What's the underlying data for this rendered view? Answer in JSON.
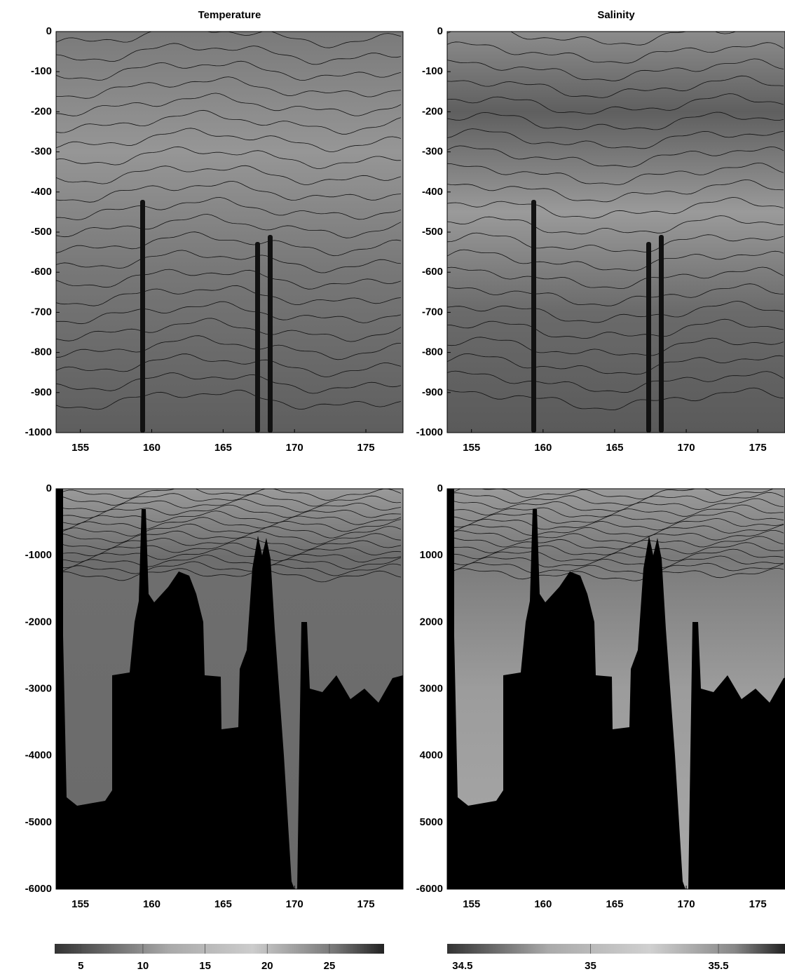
{
  "chart_data": [
    {
      "type": "section",
      "title": "Temperature",
      "xlim": [
        153.3,
        177.6
      ],
      "xticks": [
        155,
        160,
        165,
        170,
        175
      ],
      "ylim": [
        -1000,
        0
      ],
      "yticks": [
        0,
        -100,
        -200,
        -300,
        -400,
        -500,
        -600,
        -700,
        -800,
        -900,
        -1000
      ]
    },
    {
      "type": "section",
      "title": "Salinity",
      "xlim": [
        153.3,
        176.9
      ],
      "xticks": [
        155,
        160,
        165,
        170,
        175
      ],
      "ylim": [
        -1000,
        0
      ],
      "yticks": [
        0,
        -100,
        -200,
        -300,
        -400,
        -500,
        -600,
        -700,
        -800,
        -900,
        -1000
      ]
    },
    {
      "type": "section",
      "xlim": [
        153.3,
        177.6
      ],
      "xticks": [
        155,
        160,
        165,
        170,
        175
      ],
      "ylim": [
        -6000,
        0
      ],
      "yticks": [
        0,
        -1000,
        -2000,
        -3000,
        -4000,
        -5000,
        -6000
      ]
    },
    {
      "type": "section",
      "xlim": [
        153.3,
        176.9
      ],
      "xticks": [
        155,
        160,
        165,
        170,
        175
      ],
      "ylim": [
        -6000,
        0
      ],
      "yticks": [
        0,
        {
          "value": -1000,
          "label": "1000"
        },
        {
          "value": -2000,
          "label": "2000"
        },
        {
          "value": -3000,
          "label": "3000"
        },
        {
          "value": -4000,
          "label": "4000"
        },
        {
          "value": -5000,
          "label": "5000"
        },
        -6000
      ]
    },
    {
      "type": "colorbar",
      "xlim": [
        2.9,
        29.4
      ],
      "xticks": [
        5,
        10,
        15,
        20,
        25
      ]
    },
    {
      "type": "colorbar",
      "xlim": [
        34.44,
        35.76
      ],
      "xticks": [
        34.5,
        35,
        35.5
      ]
    }
  ]
}
